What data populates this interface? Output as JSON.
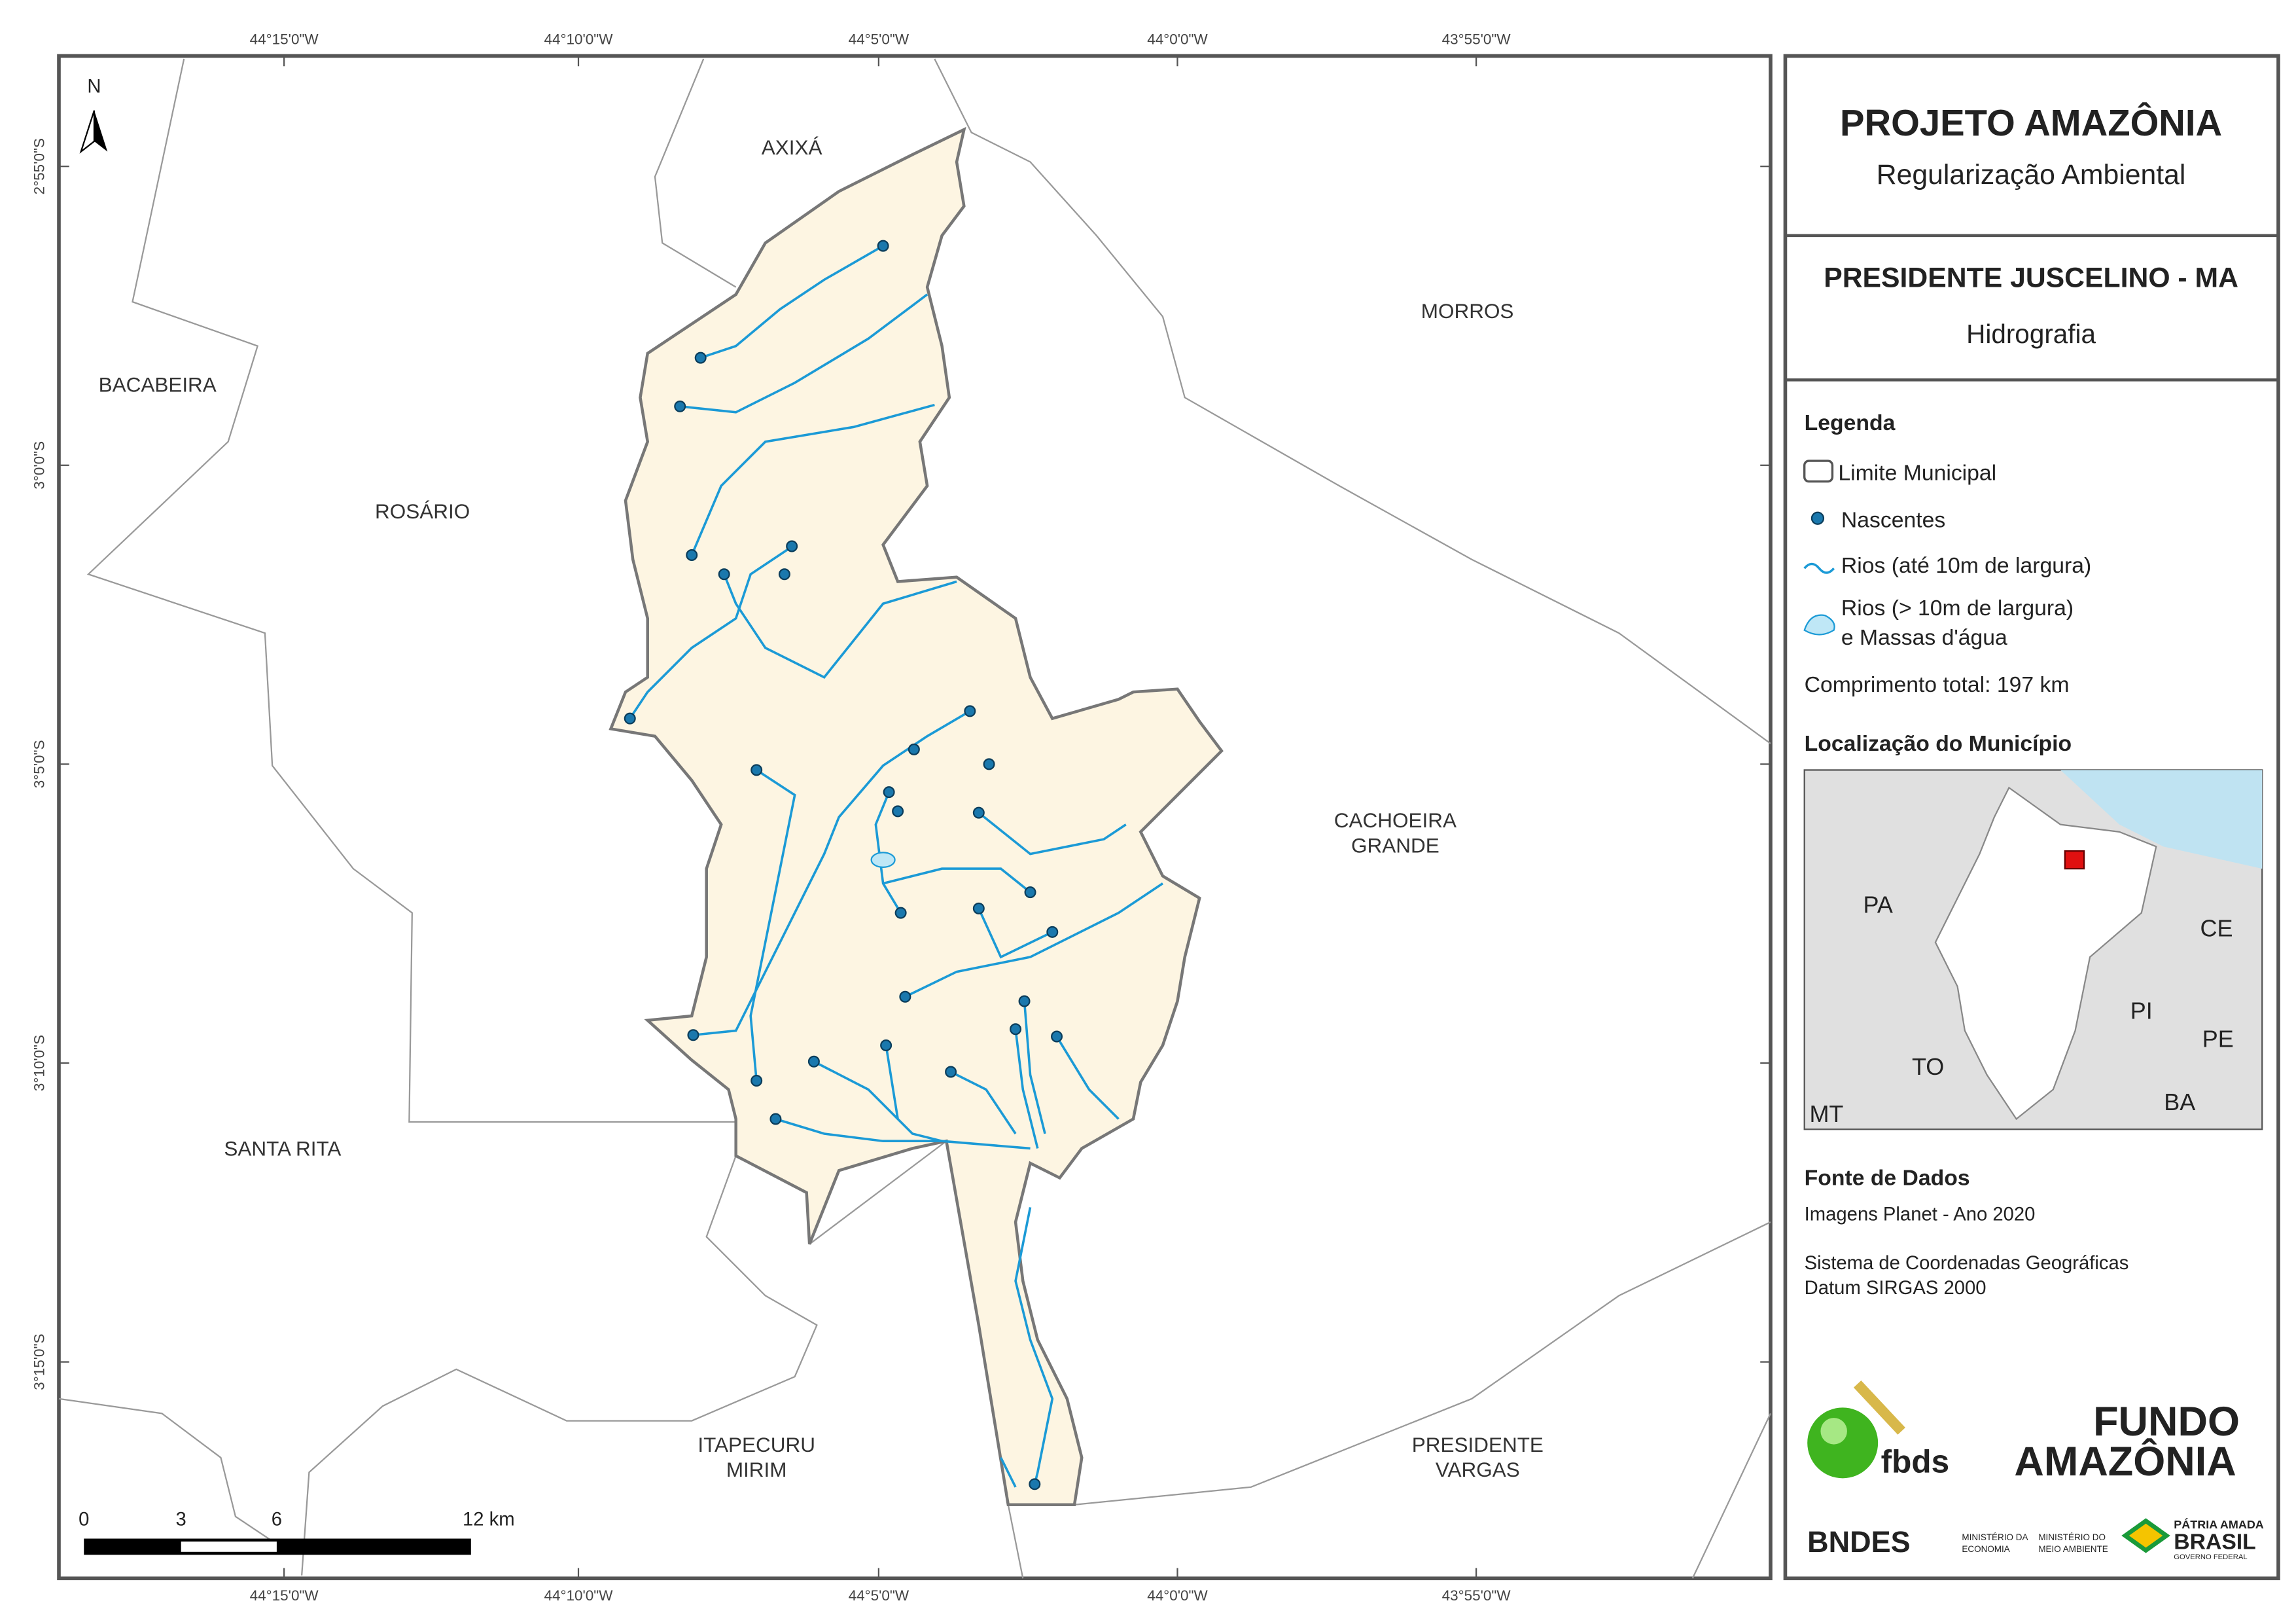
{
  "map": {
    "north": "N",
    "grid_labels": {
      "top": [
        "44°15'0\"W",
        "44°10'0\"W",
        "44°5'0\"W",
        "44°0'0\"W",
        "43°55'0\"W"
      ],
      "bottom": [
        "44°15'0\"W",
        "44°10'0\"W",
        "44°5'0\"W",
        "44°0'0\"W",
        "43°55'0\"W"
      ],
      "left": [
        "2°55'0\"S",
        "3°0'0\"S",
        "3°5'0\"S",
        "3°10'0\"S",
        "3°15'0\"S"
      ]
    },
    "municipalities": [
      [
        "AXIXÁ"
      ],
      [
        "BACABEIRA"
      ],
      [
        "MORROS"
      ],
      [
        "ROSÁRIO"
      ],
      [
        "CACHOEIRA",
        "GRANDE"
      ],
      [
        "SANTA RITA"
      ],
      [
        "ITAPECURU",
        "MIRIM"
      ],
      [
        "PRESIDENTE",
        "VARGAS"
      ]
    ],
    "scale_bar": [
      "0",
      "3",
      "6",
      "12 km"
    ]
  },
  "panel": {
    "title": "PROJETO AMAZÔNIA",
    "subtitle": "Regularização Ambiental",
    "municipality": "PRESIDENTE JUSCELINO - MA",
    "theme": "Hidrografia",
    "legend": {
      "title": "Legenda",
      "items": [
        "Limite Municipal",
        "Nascentes",
        "Rios (até 10m de largura)",
        [
          "Rios (> 10m de largura)",
          "e Massas d'água"
        ]
      ],
      "total": "Comprimento total:  197 km"
    },
    "location": {
      "title": "Localização do Município",
      "states": [
        "PA",
        "CE",
        "PI",
        "PE",
        "TO",
        "BA",
        "MT"
      ]
    },
    "sources": {
      "title": "Fonte de Dados",
      "lines": [
        "Imagens Planet - Ano 2020",
        "Sistema de Coordenadas Geográficas",
        "Datum SIRGAS 2000"
      ]
    },
    "logos": {
      "fbds": "fbds",
      "fundo": [
        "FUNDO",
        "AMAZÔNIA"
      ],
      "bndes": "BNDES",
      "ministries": [
        "MINISTÉRIO DA",
        "ECONOMIA",
        "MINISTÉRIO DO",
        "MEIO AMBIENTE"
      ],
      "brasil": [
        "PÁTRIA AMADA",
        "BRASIL",
        "GOVERNO FEDERAL"
      ]
    }
  }
}
